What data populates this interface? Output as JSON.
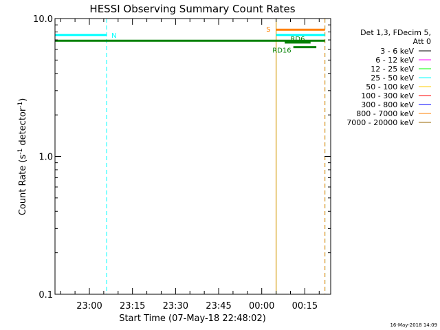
{
  "chart_data": {
    "type": "line",
    "title": "HESSI Observing Summary Count Rates",
    "ylabel_main": "Count Rate (s",
    "ylabel_sup1": "-1",
    "ylabel_mid": " detector",
    "ylabel_sup2": "-1",
    "ylabel_end": ")",
    "xlabel": "Start Time (07-May-18 22:48:02)",
    "yscale": "log",
    "ylim": [
      0.1,
      10.0
    ],
    "xlim": [
      "22:48:02",
      "00:24:00"
    ],
    "y_ticks": [
      {
        "v": 0.1,
        "label": "0.1"
      },
      {
        "v": 1.0,
        "label": "1.0"
      },
      {
        "v": 10.0,
        "label": "10.0"
      }
    ],
    "x_ticks": [
      {
        "t": "23:00",
        "label": "23:00"
      },
      {
        "t": "23:15",
        "label": "23:15"
      },
      {
        "t": "23:30",
        "label": "23:30"
      },
      {
        "t": "23:45",
        "label": "23:45"
      },
      {
        "t": "00:00",
        "label": "00:00"
      },
      {
        "t": "00:15",
        "label": "00:15"
      }
    ],
    "legend_header": [
      "Det 1,3, FDecim 5,",
      "Att 0"
    ],
    "legend_placement": "right",
    "series": [
      {
        "name": "3 - 6 keV",
        "color": "#000000"
      },
      {
        "name": "6 - 12 keV",
        "color": "#ff00ff"
      },
      {
        "name": "12 - 25 keV",
        "color": "#00ff00"
      },
      {
        "name": "25 - 50 keV",
        "color": "#00ffff"
      },
      {
        "name": "50 - 100 keV",
        "color": "#ffcc00"
      },
      {
        "name": "100 - 300 keV",
        "color": "#ff0000"
      },
      {
        "name": "300 - 800 keV",
        "color": "#0000ff"
      },
      {
        "name": "800 - 7000 keV",
        "color": "#ff8000"
      },
      {
        "name": "7000 - 20000 keV",
        "color": "#996600"
      }
    ],
    "flag_bars": [
      {
        "label": "N",
        "color": "#00ffff",
        "start": "22:48:02",
        "end": "23:06",
        "y": 7.6
      },
      {
        "label": "",
        "color": "#00ffff",
        "start": "00:05",
        "end": "00:22",
        "y": 7.6
      },
      {
        "label": "S",
        "color": "#ff8000",
        "start": "00:05",
        "end": "00:22",
        "y": 8.3
      },
      {
        "label": "",
        "color": "#008000",
        "start": "22:48:02",
        "end": "00:22",
        "y": 6.9
      },
      {
        "label": "RD6",
        "color": "#008000",
        "start": "00:08",
        "end": "00:17",
        "y": 6.7
      },
      {
        "label": "RD16",
        "color": "#008000",
        "start": "00:11",
        "end": "00:19",
        "y": 6.2
      }
    ],
    "vlines": [
      {
        "t": "22:48:02",
        "color": "#00ffff",
        "dashed": false
      },
      {
        "t": "23:06",
        "color": "#00ffff",
        "dashed": true
      },
      {
        "t": "00:05",
        "color": "#00ff00",
        "dashed": false
      },
      {
        "t": "00:05",
        "color": "#ff8000",
        "dashed": false
      },
      {
        "t": "00:22",
        "color": "#00ffff",
        "dashed": true
      },
      {
        "t": "00:22",
        "color": "#ff8000",
        "dashed": true
      }
    ],
    "grid": false
  },
  "timestamp": "16-May-2018 14:09"
}
